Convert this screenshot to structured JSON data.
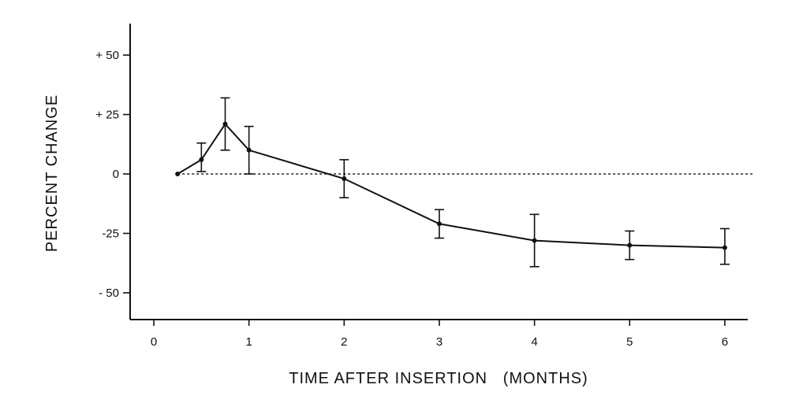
{
  "chart_data": {
    "type": "line",
    "title": "",
    "xlabel": "TIME AFTER INSERTION   (MONTHS)",
    "ylabel": "PERCENT  CHANGE",
    "xlim": [
      -0.2,
      6.25
    ],
    "ylim": [
      -60,
      63
    ],
    "x_ticks": [
      0,
      1,
      2,
      3,
      4,
      5,
      6
    ],
    "x_tick_labels": [
      "0",
      "1",
      "2",
      "3",
      "4",
      "5",
      "6"
    ],
    "y_ticks": [
      50,
      25,
      0,
      -25,
      -50
    ],
    "y_tick_labels": [
      "+ 50",
      "+ 25",
      "0",
      "-25",
      "- 50"
    ],
    "reference_line": {
      "y": 0,
      "style": "dashed"
    },
    "grid": false,
    "legend": "none",
    "series": [
      {
        "x": [
          0.25,
          0.5,
          0.75,
          1,
          2,
          3,
          4,
          5,
          6
        ],
        "y": [
          0,
          6,
          21,
          10,
          -2,
          -21,
          -28,
          -30,
          -31
        ],
        "err_low": [
          null,
          1,
          10,
          0,
          -10,
          -27,
          -39,
          -36,
          -38
        ],
        "err_high": [
          null,
          13,
          32,
          20,
          6,
          -15,
          -17,
          -24,
          -23
        ]
      }
    ]
  }
}
